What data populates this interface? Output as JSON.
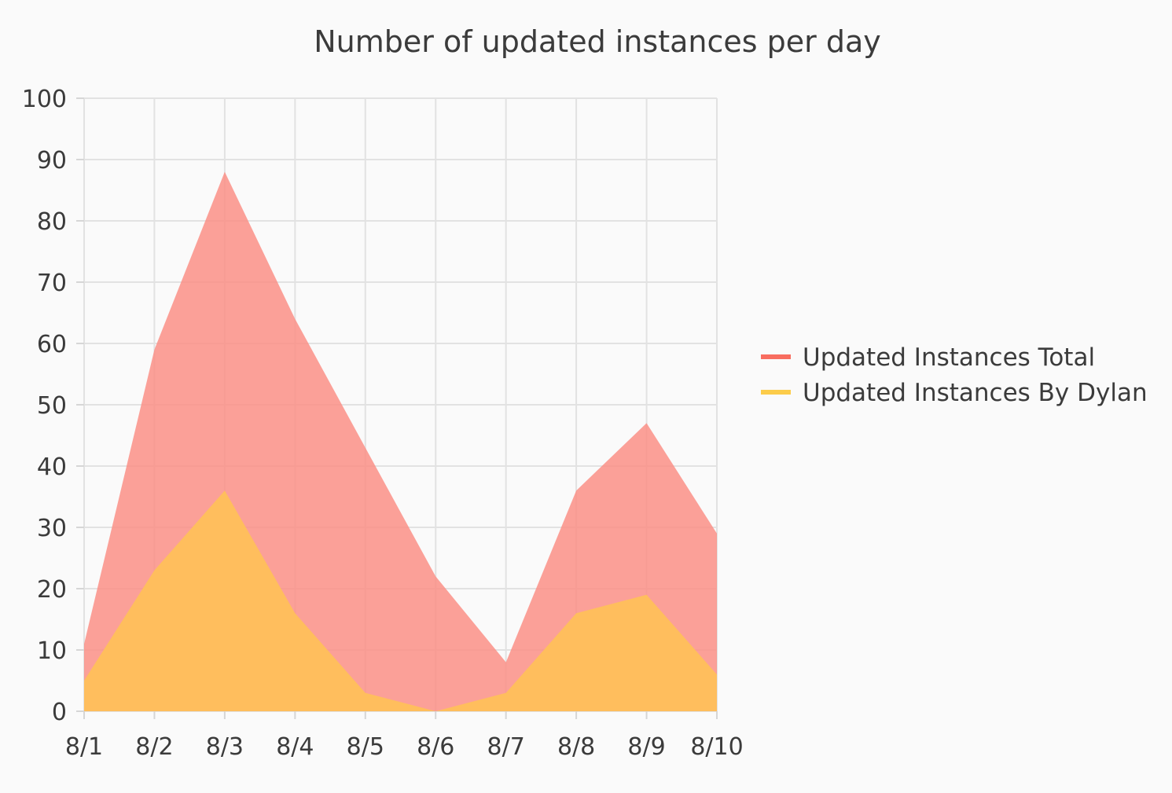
{
  "chart_data": {
    "type": "area",
    "title": "Number of updated instances per day",
    "xlabel": "",
    "ylabel": "",
    "categories": [
      "8/1",
      "8/2",
      "8/3",
      "8/4",
      "8/5",
      "8/6",
      "8/7",
      "8/8",
      "8/9",
      "8/10"
    ],
    "ylim": [
      0,
      100
    ],
    "yticks": [
      0,
      10,
      20,
      30,
      40,
      50,
      60,
      70,
      80,
      90,
      100
    ],
    "grid": true,
    "legend_position": "right",
    "series": [
      {
        "name": "Updated Instances Total",
        "color": "#f86d5f",
        "fill": "#fb8c83",
        "values": [
          11,
          59,
          88,
          64,
          43,
          22,
          8,
          36,
          47,
          29
        ]
      },
      {
        "name": "Updated Instances By Dylan",
        "color": "#fccc4a",
        "fill": "#ffc05a",
        "values": [
          5,
          23,
          36,
          16,
          3,
          0,
          3,
          16,
          19,
          6
        ]
      }
    ]
  }
}
